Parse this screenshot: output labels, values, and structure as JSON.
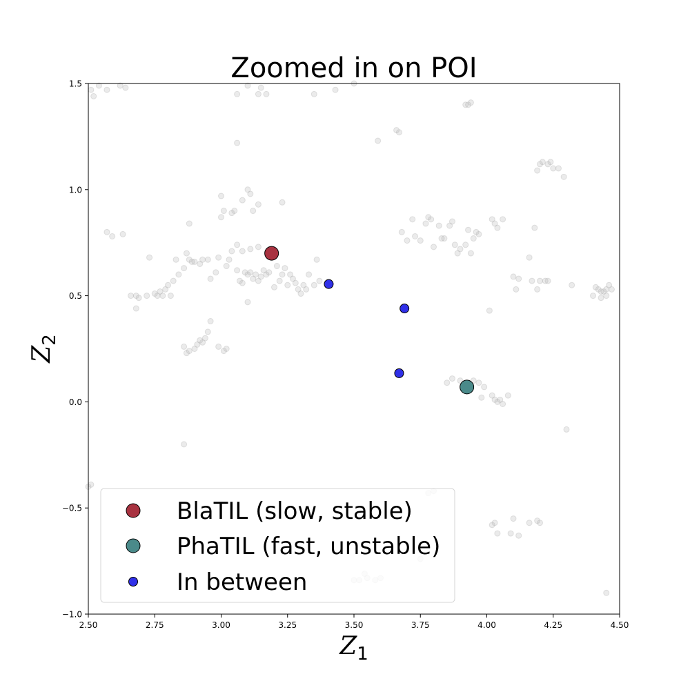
{
  "chart_data": {
    "type": "scatter",
    "title": "Zoomed in on POI",
    "xlabel": {
      "base": "Z",
      "sub": "1"
    },
    "ylabel": {
      "base": "Z",
      "sub": "2"
    },
    "xlim": [
      2.5,
      4.5
    ],
    "ylim": [
      -1.0,
      1.5
    ],
    "xticks": [
      2.5,
      2.75,
      3.0,
      3.25,
      3.5,
      3.75,
      4.0,
      4.25,
      4.5
    ],
    "xtick_labels": [
      "2.50",
      "2.75",
      "3.00",
      "3.25",
      "3.50",
      "3.75",
      "4.00",
      "4.25",
      "4.50"
    ],
    "yticks": [
      -1.0,
      -0.5,
      0.0,
      0.5,
      1.0,
      1.5
    ],
    "ytick_labels": [
      "−1.0",
      "−0.5",
      "0.0",
      "0.5",
      "1.0",
      "1.5"
    ],
    "grid": false,
    "legend_position": "lower-left",
    "background": {
      "color": "#b0b0b0",
      "points": [
        [
          2.51,
          1.47
        ],
        [
          2.52,
          1.44
        ],
        [
          2.54,
          1.49
        ],
        [
          2.57,
          1.47
        ],
        [
          2.62,
          1.49
        ],
        [
          2.64,
          1.48
        ],
        [
          2.57,
          0.8
        ],
        [
          2.59,
          0.78
        ],
        [
          2.63,
          0.79
        ],
        [
          2.66,
          0.5
        ],
        [
          2.68,
          0.5
        ],
        [
          2.69,
          0.49
        ],
        [
          2.68,
          0.44
        ],
        [
          2.72,
          0.5
        ],
        [
          2.73,
          0.68
        ],
        [
          2.75,
          0.51
        ],
        [
          2.76,
          0.5
        ],
        [
          2.77,
          0.52
        ],
        [
          2.78,
          0.5
        ],
        [
          2.79,
          0.53
        ],
        [
          2.8,
          0.55
        ],
        [
          2.81,
          0.5
        ],
        [
          2.82,
          0.57
        ],
        [
          2.83,
          0.67
        ],
        [
          2.84,
          0.6
        ],
        [
          2.86,
          0.63
        ],
        [
          2.87,
          0.7
        ],
        [
          2.88,
          0.67
        ],
        [
          2.89,
          0.66
        ],
        [
          2.9,
          0.66
        ],
        [
          2.92,
          0.65
        ],
        [
          2.93,
          0.67
        ],
        [
          2.95,
          0.67
        ],
        [
          2.96,
          0.58
        ],
        [
          2.98,
          0.61
        ],
        [
          2.99,
          0.68
        ],
        [
          2.88,
          0.84
        ],
        [
          2.86,
          -0.2
        ],
        [
          2.86,
          0.26
        ],
        [
          2.87,
          0.23
        ],
        [
          2.88,
          0.24
        ],
        [
          2.9,
          0.25
        ],
        [
          2.91,
          0.27
        ],
        [
          2.92,
          0.29
        ],
        [
          2.93,
          0.28
        ],
        [
          2.94,
          0.3
        ],
        [
          2.95,
          0.33
        ],
        [
          2.96,
          0.38
        ],
        [
          2.99,
          0.26
        ],
        [
          3.01,
          0.24
        ],
        [
          3.02,
          0.25
        ],
        [
          3.0,
          0.97
        ],
        [
          3.0,
          0.87
        ],
        [
          3.01,
          0.9
        ],
        [
          3.02,
          0.64
        ],
        [
          3.03,
          0.67
        ],
        [
          3.04,
          0.89
        ],
        [
          3.05,
          0.9
        ],
        [
          3.06,
          0.62
        ],
        [
          3.07,
          0.57
        ],
        [
          3.08,
          0.56
        ],
        [
          3.09,
          0.61
        ],
        [
          3.1,
          0.6
        ],
        [
          3.1,
          0.47
        ],
        [
          3.11,
          0.61
        ],
        [
          3.12,
          0.58
        ],
        [
          3.13,
          0.6
        ],
        [
          3.14,
          0.57
        ],
        [
          3.15,
          0.59
        ],
        [
          3.16,
          0.62
        ],
        [
          3.17,
          0.6
        ],
        [
          3.18,
          0.61
        ],
        [
          3.08,
          0.95
        ],
        [
          3.1,
          1.0
        ],
        [
          3.11,
          0.98
        ],
        [
          3.12,
          0.9
        ],
        [
          3.14,
          0.93
        ],
        [
          3.06,
          1.22
        ],
        [
          3.06,
          1.45
        ],
        [
          3.1,
          1.49
        ],
        [
          3.14,
          1.45
        ],
        [
          3.15,
          1.48
        ],
        [
          3.17,
          1.45
        ],
        [
          3.23,
          0.94
        ],
        [
          3.04,
          0.71
        ],
        [
          3.06,
          0.74
        ],
        [
          3.08,
          0.71
        ],
        [
          3.11,
          0.72
        ],
        [
          3.14,
          0.73
        ],
        [
          3.21,
          0.64
        ],
        [
          3.23,
          0.6
        ],
        [
          3.24,
          0.63
        ],
        [
          3.25,
          0.55
        ],
        [
          3.26,
          0.6
        ],
        [
          3.27,
          0.58
        ],
        [
          3.28,
          0.56
        ],
        [
          3.29,
          0.53
        ],
        [
          3.3,
          0.51
        ],
        [
          3.31,
          0.55
        ],
        [
          3.32,
          0.53
        ],
        [
          3.33,
          0.6
        ],
        [
          3.35,
          0.55
        ],
        [
          3.36,
          0.67
        ],
        [
          3.37,
          0.57
        ],
        [
          3.22,
          0.57
        ],
        [
          3.2,
          0.54
        ],
        [
          3.35,
          1.45
        ],
        [
          3.43,
          1.47
        ],
        [
          3.5,
          1.5
        ],
        [
          3.59,
          1.23
        ],
        [
          3.66,
          1.28
        ],
        [
          3.67,
          1.27
        ],
        [
          3.68,
          0.8
        ],
        [
          3.7,
          0.76
        ],
        [
          3.72,
          0.86
        ],
        [
          3.73,
          0.78
        ],
        [
          3.75,
          0.76
        ],
        [
          3.77,
          0.84
        ],
        [
          3.78,
          0.87
        ],
        [
          3.79,
          0.86
        ],
        [
          3.8,
          0.73
        ],
        [
          3.82,
          0.83
        ],
        [
          3.83,
          0.77
        ],
        [
          3.84,
          0.77
        ],
        [
          3.86,
          0.83
        ],
        [
          3.87,
          0.85
        ],
        [
          3.88,
          0.74
        ],
        [
          3.89,
          0.7
        ],
        [
          3.9,
          0.72
        ],
        [
          3.92,
          0.74
        ],
        [
          3.93,
          0.81
        ],
        [
          3.94,
          0.7
        ],
        [
          3.95,
          0.77
        ],
        [
          3.96,
          0.8
        ],
        [
          3.97,
          0.79
        ],
        [
          4.01,
          0.43
        ],
        [
          3.92,
          1.4
        ],
        [
          3.93,
          1.4
        ],
        [
          3.94,
          1.41
        ],
        [
          3.85,
          0.09
        ],
        [
          3.87,
          0.11
        ],
        [
          3.9,
          0.1
        ],
        [
          3.93,
          0.07
        ],
        [
          3.95,
          0.1
        ],
        [
          3.97,
          0.09
        ],
        [
          3.98,
          0.02
        ],
        [
          3.99,
          0.07
        ],
        [
          4.02,
          0.03
        ],
        [
          4.03,
          0.01
        ],
        [
          4.04,
          0.0
        ],
        [
          4.05,
          0.01
        ],
        [
          4.06,
          -0.01
        ],
        [
          4.08,
          0.03
        ],
        [
          4.02,
          0.86
        ],
        [
          4.03,
          0.84
        ],
        [
          4.04,
          0.82
        ],
        [
          4.06,
          0.86
        ],
        [
          4.1,
          0.59
        ],
        [
          4.11,
          0.53
        ],
        [
          4.12,
          0.58
        ],
        [
          4.16,
          0.68
        ],
        [
          4.17,
          0.57
        ],
        [
          4.18,
          0.82
        ],
        [
          4.19,
          0.53
        ],
        [
          4.2,
          0.57
        ],
        [
          4.22,
          0.57
        ],
        [
          4.23,
          0.57
        ],
        [
          4.32,
          0.55
        ],
        [
          4.19,
          1.09
        ],
        [
          4.2,
          1.12
        ],
        [
          4.21,
          1.13
        ],
        [
          4.23,
          1.12
        ],
        [
          4.24,
          1.13
        ],
        [
          4.25,
          1.1
        ],
        [
          4.27,
          1.1
        ],
        [
          4.29,
          1.06
        ],
        [
          4.3,
          -0.13
        ],
        [
          4.4,
          0.5
        ],
        [
          4.41,
          0.54
        ],
        [
          4.42,
          0.53
        ],
        [
          4.43,
          0.52
        ],
        [
          4.44,
          0.52
        ],
        [
          4.45,
          0.53
        ],
        [
          4.46,
          0.55
        ],
        [
          4.47,
          0.53
        ],
        [
          4.43,
          0.49
        ],
        [
          4.45,
          0.5
        ],
        [
          4.45,
          -0.9
        ],
        [
          2.5,
          -0.4
        ],
        [
          2.51,
          -0.39
        ],
        [
          3.78,
          -0.43
        ],
        [
          3.8,
          -0.42
        ],
        [
          4.02,
          -0.58
        ],
        [
          4.03,
          -0.57
        ],
        [
          4.04,
          -0.62
        ],
        [
          4.09,
          -0.62
        ],
        [
          4.1,
          -0.55
        ],
        [
          4.12,
          -0.63
        ],
        [
          4.16,
          -0.57
        ],
        [
          4.19,
          -0.56
        ],
        [
          4.2,
          -0.57
        ],
        [
          3.5,
          -0.84
        ],
        [
          3.52,
          -0.84
        ],
        [
          3.54,
          -0.81
        ],
        [
          3.55,
          -0.83
        ],
        [
          3.58,
          -0.84
        ],
        [
          3.6,
          -0.83
        ],
        [
          3.75,
          -0.74
        ]
      ]
    },
    "series": [
      {
        "name": "BlaTIL (slow, stable)",
        "color": "#a83240",
        "marker_size": "large",
        "points": [
          [
            3.19,
            0.7
          ]
        ]
      },
      {
        "name": "PhaTIL (fast, unstable)",
        "color": "#4a8a8a",
        "marker_size": "large",
        "points": [
          [
            3.925,
            0.07
          ]
        ]
      },
      {
        "name": "In between",
        "color": "#3030e8",
        "marker_size": "small",
        "points": [
          [
            3.405,
            0.555
          ],
          [
            3.69,
            0.44
          ],
          [
            3.67,
            0.135
          ]
        ]
      }
    ]
  }
}
